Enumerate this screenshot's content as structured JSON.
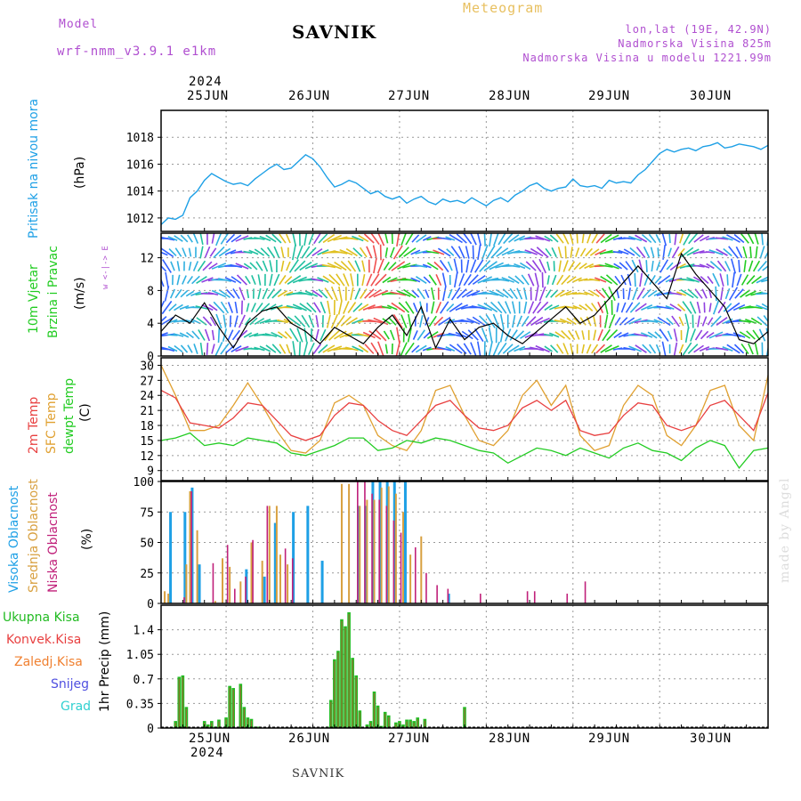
{
  "header": {
    "model_label": "Model",
    "model_name": "wrf-nmm_v3.9.1 e1km",
    "station": "SAVNIK",
    "product": "Meteogram",
    "lonlat": "lon,lat (19E, 42.9N)",
    "elev": "Nadmorska Visina 825m",
    "elev_model": "Nadmorska Visina u modelu 1221.99m"
  },
  "dates": {
    "year": "2024",
    "days": [
      "25JUN",
      "26JUN",
      "27JUN",
      "28JUN",
      "29JUN",
      "30JUN"
    ]
  },
  "labels": {
    "pressure": "Pritisak na nivou mora",
    "pressure_unit": "(hPa)",
    "wind1": "10m Vjetar",
    "wind2": "Brzina i Pravac",
    "wind_unit": "(m/s)",
    "compass": "w <-|-> E",
    "temp_2m": "2m Temp",
    "temp_sfc": "SFC Temp",
    "temp_dew": "dewpt Temp",
    "temp_unit": "(C)",
    "cl_high": "Visoka Oblacnost",
    "cl_mid": "Srednja Oblacnost",
    "cl_low": "Niska Oblacnost",
    "cl_unit": "(%)",
    "pr_total": "Ukupna Kisa",
    "pr_conv": "Konvek.Kisa",
    "pr_frz": "Zaledj.Kisa",
    "pr_snow": "Snijeg",
    "pr_grad": "Grad",
    "pr_unit": "1hr Precip (mm)",
    "footer": "SAVNIK",
    "credit": "made by Angel"
  },
  "colors": {
    "pressure": "#1ea0e6",
    "temp_2m": "#e84040",
    "temp_sfc": "#e0a030",
    "temp_dew": "#22cc22",
    "cloud_high": "#1ea0e6",
    "cloud_mid": "#d8a040",
    "cloud_low": "#c0207a",
    "precip_total": "#22bb22",
    "precip_conv": "#e84040",
    "precip_frz": "#f08030",
    "snow": "#5050e0",
    "grad": "#30d0d0"
  },
  "chart_data": [
    {
      "type": "line",
      "name": "pressure",
      "x_unit": "hours from 24JUN 12UTC",
      "ylim": [
        1011,
        1020
      ],
      "yticks": [
        1012,
        1014,
        1016,
        1018
      ],
      "series": [
        {
          "x": [
            0,
            2,
            4,
            6,
            8,
            10,
            12,
            14,
            16,
            18,
            20,
            22,
            24,
            26,
            28,
            30,
            32,
            34,
            36,
            38,
            40,
            42,
            44,
            46,
            48,
            50,
            52,
            54,
            56,
            58,
            60,
            62,
            64,
            66,
            68,
            70,
            72,
            74,
            76,
            78,
            80,
            82,
            84,
            86,
            88,
            90,
            92,
            94,
            96,
            98,
            100,
            102,
            104,
            106,
            108,
            110,
            112,
            114,
            116,
            118,
            120,
            122,
            124,
            126,
            128,
            130,
            132,
            134,
            136,
            138,
            140,
            142,
            144,
            146,
            148,
            150,
            152,
            154,
            156,
            158,
            160,
            162,
            164,
            166,
            168
          ],
          "values": [
            1011.5,
            1012.0,
            1011.9,
            1012.2,
            1013.5,
            1014.0,
            1014.8,
            1015.3,
            1015.0,
            1014.7,
            1014.5,
            1014.6,
            1014.4,
            1014.9,
            1015.3,
            1015.7,
            1016.0,
            1015.6,
            1015.7,
            1016.2,
            1016.7,
            1016.4,
            1015.8,
            1015.0,
            1014.3,
            1014.5,
            1014.8,
            1014.6,
            1014.2,
            1013.8,
            1014.0,
            1013.6,
            1013.4,
            1013.6,
            1013.1,
            1013.4,
            1013.6,
            1013.2,
            1013.0,
            1013.4,
            1013.2,
            1013.3,
            1013.1,
            1013.5,
            1013.2,
            1012.9,
            1013.3,
            1013.5,
            1013.2,
            1013.7,
            1014.0,
            1014.4,
            1014.6,
            1014.2,
            1014.0,
            1014.2,
            1014.3,
            1014.9,
            1014.4,
            1014.3,
            1014.4,
            1014.2,
            1014.8,
            1014.6,
            1014.7,
            1014.6,
            1015.2,
            1015.6,
            1016.2,
            1016.8,
            1017.1,
            1016.9,
            1017.1,
            1017.2,
            1017.0,
            1017.3,
            1017.4,
            1017.6,
            1017.2,
            1017.3,
            1017.5,
            1017.4,
            1017.3,
            1017.1,
            1017.4
          ]
        }
      ]
    },
    {
      "type": "line",
      "name": "wind",
      "ylim": [
        0,
        15
      ],
      "yticks": [
        0,
        4,
        8,
        12
      ],
      "series": [
        {
          "name": "speed",
          "x": [
            0,
            4,
            8,
            12,
            16,
            20,
            24,
            28,
            32,
            36,
            40,
            44,
            48,
            52,
            56,
            60,
            64,
            68,
            72,
            76,
            80,
            84,
            88,
            92,
            96,
            100,
            104,
            108,
            112,
            116,
            120,
            124,
            128,
            132,
            136,
            140,
            144,
            148,
            152,
            156,
            160,
            164,
            168
          ],
          "values": [
            3.0,
            5.0,
            4.0,
            6.5,
            3.5,
            1.0,
            4.0,
            5.5,
            6.0,
            4.0,
            3.0,
            1.5,
            3.5,
            2.5,
            1.5,
            3.5,
            5.0,
            2.5,
            6.0,
            1.0,
            4.5,
            2.0,
            3.5,
            4.0,
            2.5,
            1.5,
            3.0,
            4.5,
            6.0,
            4.0,
            5.0,
            7.0,
            9.0,
            11.0,
            9.0,
            7.0,
            12.5,
            10.0,
            8.0,
            6.0,
            2.0,
            1.5,
            3.0
          ]
        }
      ]
    },
    {
      "type": "line",
      "name": "temperature",
      "ylim": [
        7,
        31.5
      ],
      "yticks": [
        9,
        12,
        15,
        18,
        21,
        24,
        27,
        30
      ],
      "series": [
        {
          "name": "2m Temp",
          "x": [
            0,
            4,
            8,
            12,
            16,
            20,
            24,
            28,
            32,
            36,
            40,
            44,
            48,
            52,
            56,
            60,
            64,
            68,
            72,
            76,
            80,
            84,
            88,
            92,
            96,
            100,
            104,
            108,
            112,
            116,
            120,
            124,
            128,
            132,
            136,
            140,
            144,
            148,
            152,
            156,
            160,
            164,
            168
          ],
          "values": [
            25.0,
            23.5,
            18.5,
            18.0,
            17.5,
            19.5,
            22.5,
            22.0,
            19.0,
            16.0,
            15.0,
            16.0,
            20.0,
            22.5,
            22.0,
            19.0,
            17.0,
            16.0,
            19.0,
            22.0,
            23.0,
            20.0,
            17.5,
            17.0,
            18.0,
            21.5,
            23.0,
            21.0,
            23.0,
            17.0,
            16.0,
            16.5,
            20.0,
            22.5,
            22.0,
            18.0,
            17.0,
            18.0,
            22.0,
            23.0,
            20.0,
            17.0,
            24.5
          ]
        },
        {
          "name": "SFC Temp",
          "x": [
            0,
            4,
            8,
            12,
            16,
            20,
            24,
            28,
            32,
            36,
            40,
            44,
            48,
            52,
            56,
            60,
            64,
            68,
            72,
            76,
            80,
            84,
            88,
            92,
            96,
            100,
            104,
            108,
            112,
            116,
            120,
            124,
            128,
            132,
            136,
            140,
            144,
            148,
            152,
            156,
            160,
            164,
            168
          ],
          "values": [
            30.0,
            24.0,
            17.0,
            17.0,
            18.0,
            22.0,
            26.5,
            22.0,
            17.0,
            13.0,
            12.5,
            15.0,
            22.5,
            24.0,
            22.0,
            16.0,
            14.0,
            13.0,
            17.0,
            25.0,
            26.0,
            20.0,
            15.0,
            14.0,
            17.0,
            24.0,
            27.0,
            22.0,
            26.0,
            16.0,
            13.0,
            14.0,
            22.0,
            26.0,
            24.0,
            16.0,
            14.0,
            18.0,
            25.0,
            26.0,
            18.0,
            15.0,
            28.0
          ]
        },
        {
          "name": "dewpt Temp",
          "x": [
            0,
            4,
            8,
            12,
            16,
            20,
            24,
            28,
            32,
            36,
            40,
            44,
            48,
            52,
            56,
            60,
            64,
            68,
            72,
            76,
            80,
            84,
            88,
            92,
            96,
            100,
            104,
            108,
            112,
            116,
            120,
            124,
            128,
            132,
            136,
            140,
            144,
            148,
            152,
            156,
            160,
            164,
            168
          ],
          "values": [
            15.0,
            15.5,
            16.5,
            14.0,
            14.5,
            14.0,
            15.5,
            15.0,
            14.5,
            12.5,
            12.0,
            13.0,
            14.0,
            15.5,
            15.5,
            13.0,
            13.5,
            15.0,
            14.5,
            15.5,
            15.0,
            14.0,
            13.0,
            12.5,
            10.5,
            12.0,
            13.5,
            13.0,
            12.0,
            13.5,
            12.5,
            11.5,
            13.5,
            14.5,
            13.0,
            12.5,
            11.0,
            13.5,
            15.0,
            14.0,
            9.5,
            13.0,
            13.5
          ]
        }
      ]
    },
    {
      "type": "bar",
      "name": "cloud_cover",
      "ylim": [
        0,
        100
      ],
      "yticks": [
        0,
        25,
        50,
        75,
        100
      ],
      "series": [
        {
          "name": "high",
          "x": [
            3,
            7,
            9,
            11,
            24,
            29,
            32,
            37,
            41,
            45,
            55,
            57,
            59,
            61,
            63,
            65,
            68,
            80
          ],
          "values": [
            75,
            75,
            95,
            32,
            28,
            22,
            66,
            75,
            80,
            35,
            80,
            80,
            100,
            100,
            100,
            100,
            100,
            8
          ]
        },
        {
          "name": "mid",
          "x": [
            1,
            2,
            7,
            8,
            10,
            15,
            17,
            19,
            22,
            25,
            28,
            30,
            32,
            33,
            35,
            50,
            52,
            55,
            57,
            59,
            61,
            63,
            65,
            67,
            69,
            72
          ],
          "values": [
            10,
            8,
            32,
            92,
            60,
            2,
            37,
            30,
            18,
            50,
            35,
            80,
            80,
            40,
            32,
            98,
            98,
            80,
            85,
            85,
            95,
            96,
            90,
            75,
            40,
            55
          ],
          "note": ""
        },
        {
          "name": "low",
          "x": [
            6,
            8,
            14,
            18,
            20,
            23,
            25,
            29,
            34,
            36,
            54,
            56,
            58,
            60,
            62,
            64,
            66,
            70,
            73,
            76,
            79,
            88,
            101,
            103,
            112,
            117
          ],
          "values": [
            5,
            92,
            33,
            48,
            12,
            22,
            52,
            80,
            45,
            37,
            100,
            100,
            90,
            85,
            80,
            68,
            58,
            46,
            25,
            15,
            12,
            8,
            10,
            10,
            8,
            18
          ]
        }
      ]
    },
    {
      "type": "bar",
      "name": "precipitation",
      "ylim": [
        0,
        1.75
      ],
      "yticks": [
        0,
        0.35,
        0.7,
        1.05,
        1.4
      ],
      "series": [
        {
          "name": "total",
          "x": [
            4,
            5,
            6,
            7,
            12,
            13,
            14,
            15,
            16,
            18,
            19,
            20,
            22,
            23,
            24,
            25,
            26,
            27,
            46,
            47,
            48,
            49,
            50,
            51,
            52,
            53,
            54,
            55,
            57,
            58,
            59,
            60,
            61,
            62,
            63,
            65,
            66,
            67,
            68,
            69,
            70,
            71,
            73,
            84
          ],
          "values": [
            0.1,
            0.73,
            0.75,
            0.3,
            0.1,
            0.05,
            0.1,
            0.02,
            0.12,
            0.15,
            0.6,
            0.57,
            0.63,
            0.3,
            0.15,
            0.13,
            0.02,
            0.02,
            0.02,
            0.4,
            0.98,
            1.1,
            1.55,
            1.45,
            1.65,
            1.0,
            0.75,
            0.25,
            0.05,
            0.1,
            0.52,
            0.32,
            0.03,
            0.23,
            0.18,
            0.08,
            0.1,
            0.05,
            0.12,
            0.12,
            0.1,
            0.15,
            0.13,
            0.3
          ]
        }
      ]
    }
  ]
}
